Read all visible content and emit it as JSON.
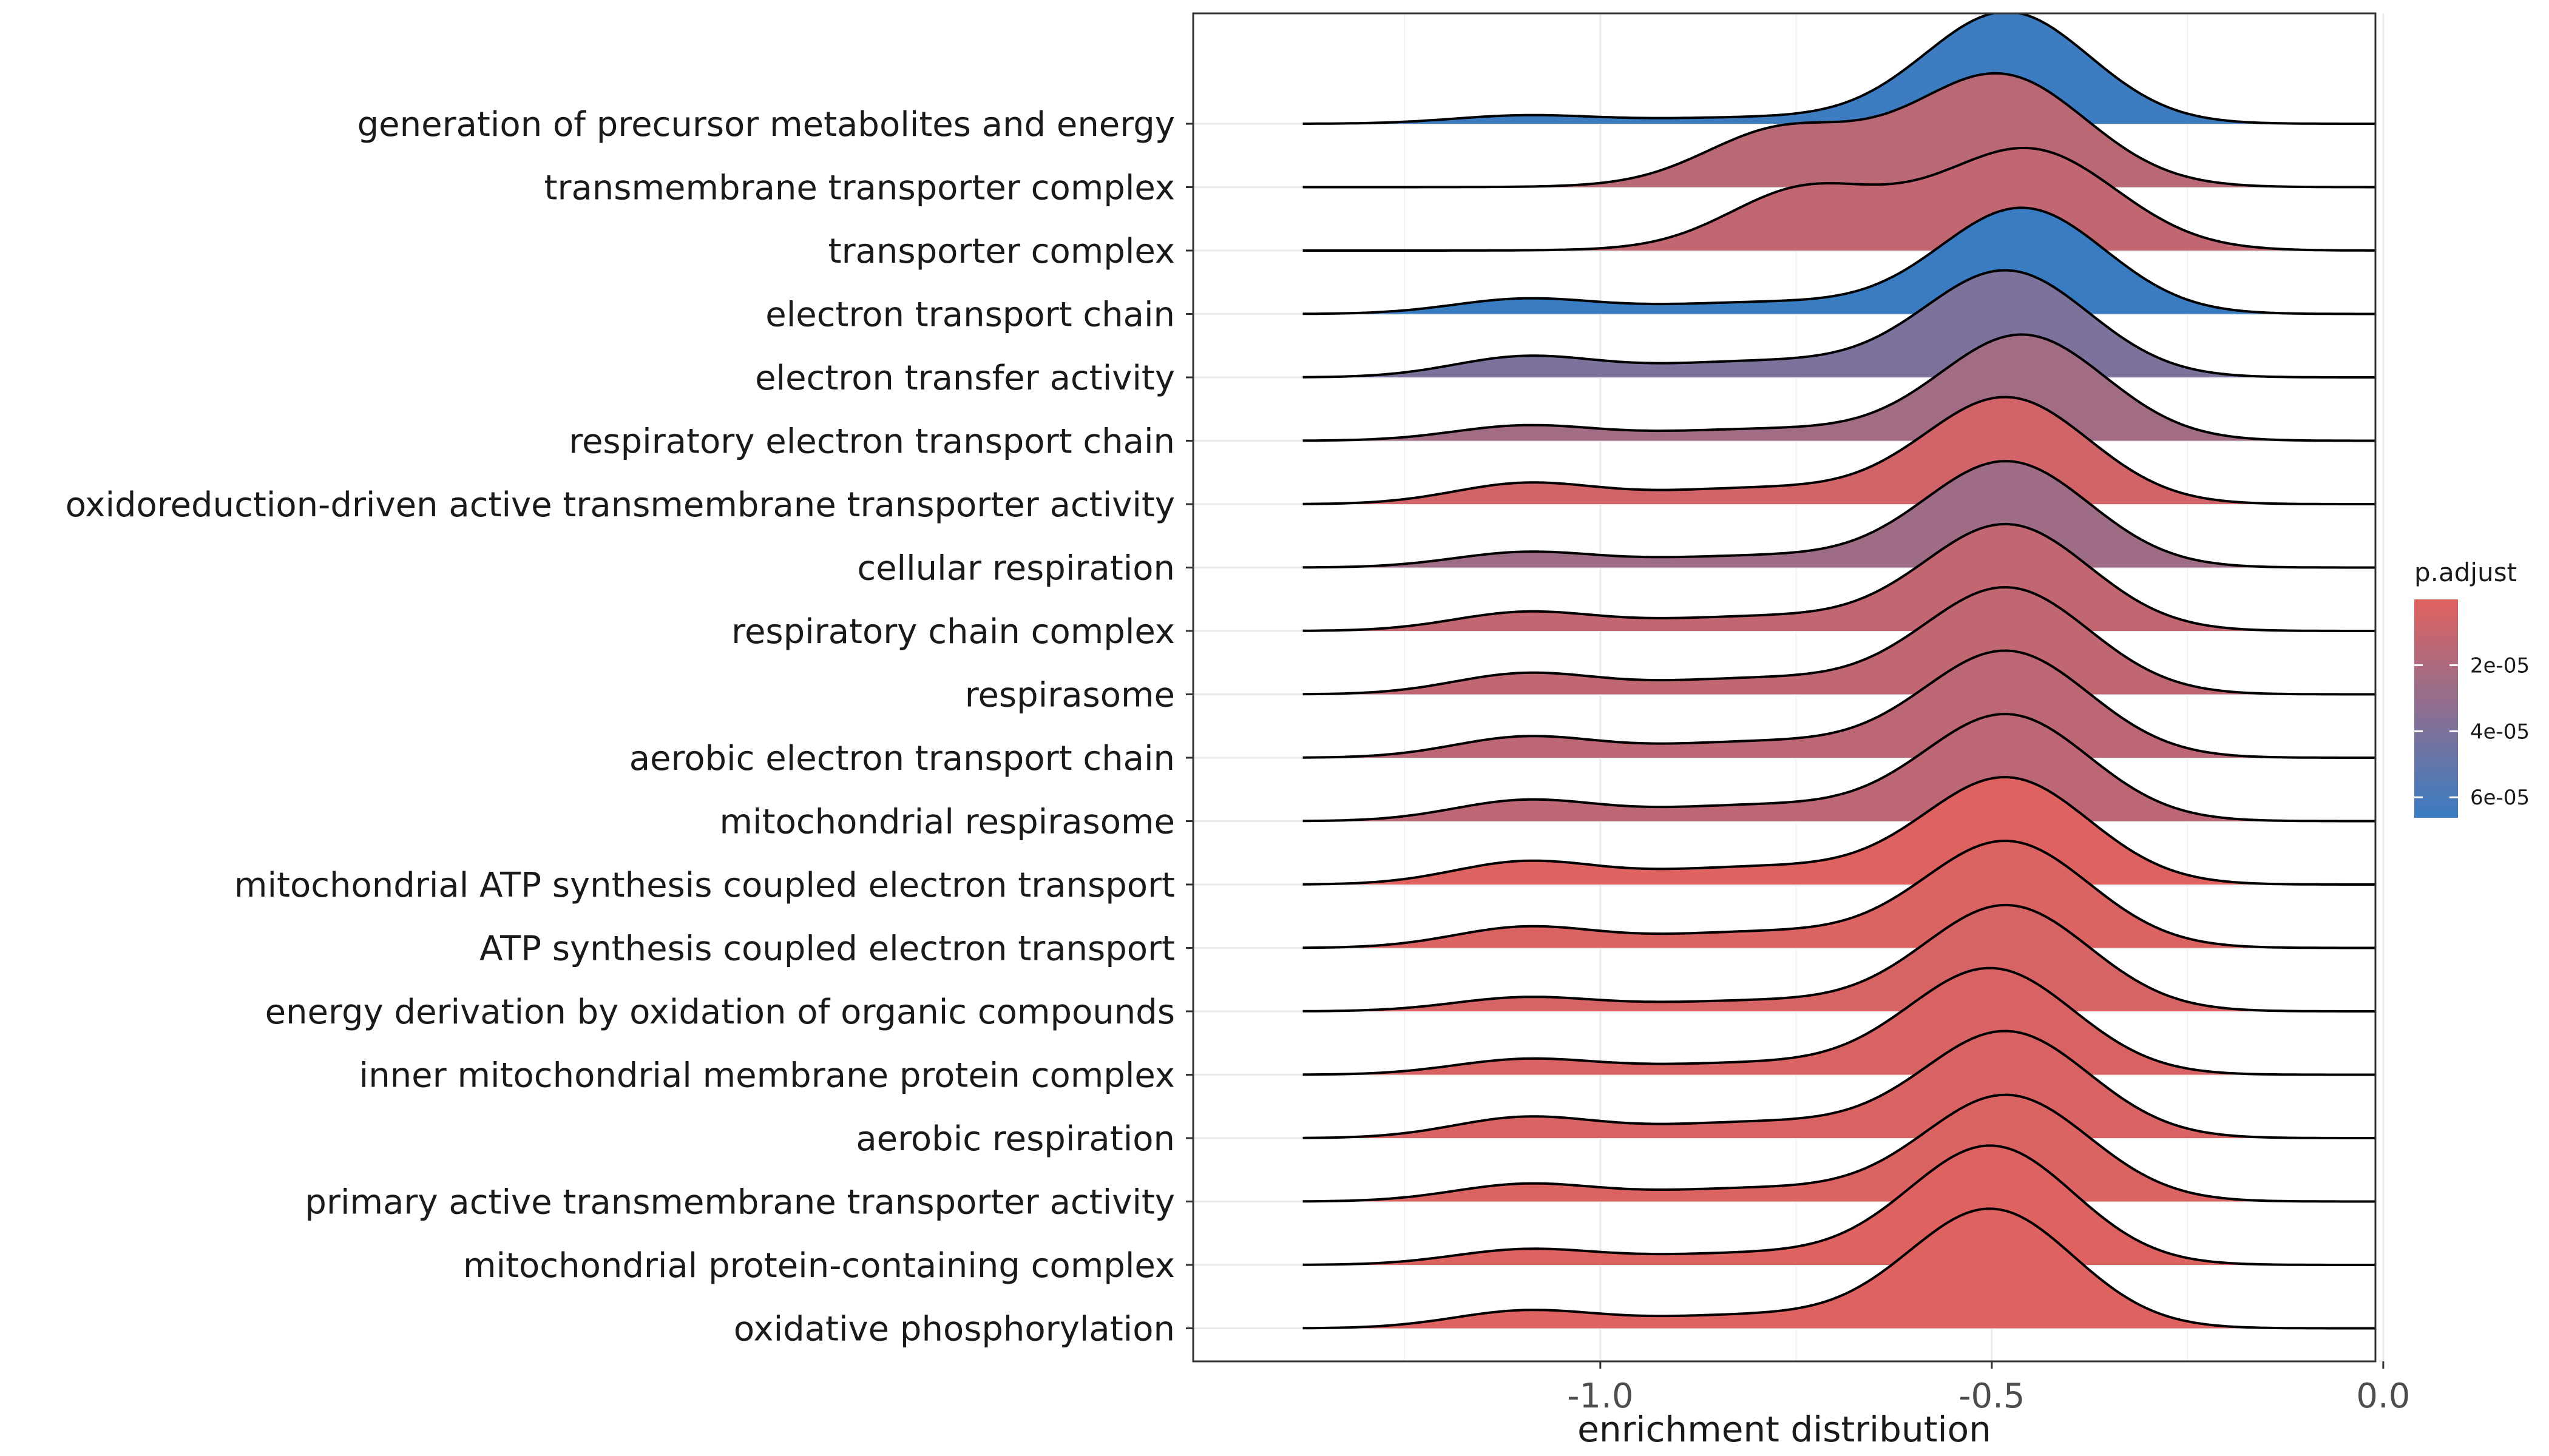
{
  "chart_data": {
    "type": "ridgeline",
    "xlabel": "enrichment distribution",
    "ylabel": "",
    "xlim": [
      -1.52,
      -0.01
    ],
    "x_ticks": [
      -1.0,
      -0.5,
      0.0
    ],
    "x_tick_labels": [
      "-1.0",
      "-0.5",
      "0.0"
    ],
    "grid": true,
    "legend": {
      "title": "p.adjust",
      "position": "right",
      "range": [
        1e-07,
        6.62e-05
      ],
      "ticks": [
        2e-05,
        4e-05,
        6e-05
      ],
      "tick_labels": [
        "2e-05",
        "4e-05",
        "6e-05"
      ],
      "color_low": "#e0625f",
      "color_high": "#3a7cc2"
    },
    "ridges": [
      {
        "term": "generation of precursor metabolites and energy",
        "p_adjust": 6.5e-05,
        "peak_x": -0.48,
        "peak_height": 1.75,
        "x_min": -1.38,
        "x_max": -0.01,
        "shoulder_x": -1.1,
        "shoulder_height": 0.12
      },
      {
        "term": "transmembrane transporter complex",
        "p_adjust": 1.5e-05,
        "peak_x": -0.48,
        "peak_height": 1.45,
        "x_min": -1.38,
        "x_max": -0.01,
        "shoulder_x": -0.78,
        "shoulder_height": 0.6
      },
      {
        "term": "transporter complex",
        "p_adjust": 1.2e-05,
        "peak_x": -0.44,
        "peak_height": 1.25,
        "x_min": -1.38,
        "x_max": -0.01,
        "shoulder_x": -0.75,
        "shoulder_height": 0.65
      },
      {
        "term": "electron transport chain",
        "p_adjust": 6.62e-05,
        "peak_x": -0.46,
        "peak_height": 1.65,
        "x_min": -1.38,
        "x_max": -0.01,
        "shoulder_x": -1.1,
        "shoulder_height": 0.22
      },
      {
        "term": "electron transfer activity",
        "p_adjust": 4e-05,
        "peak_x": -0.48,
        "peak_height": 1.65,
        "x_min": -1.38,
        "x_max": -0.01,
        "shoulder_x": -1.1,
        "shoulder_height": 0.3
      },
      {
        "term": "respiratory electron transport chain",
        "p_adjust": 2.5e-05,
        "peak_x": -0.46,
        "peak_height": 1.65,
        "x_min": -1.38,
        "x_max": -0.01,
        "shoulder_x": -1.1,
        "shoulder_height": 0.22
      },
      {
        "term": "oxidoreduction-driven active transmembrane transporter activity",
        "p_adjust": 6e-06,
        "peak_x": -0.48,
        "peak_height": 1.65,
        "x_min": -1.38,
        "x_max": -0.01,
        "shoulder_x": -1.1,
        "shoulder_height": 0.3
      },
      {
        "term": "cellular respiration",
        "p_adjust": 2.6e-05,
        "peak_x": -0.48,
        "peak_height": 1.65,
        "x_min": -1.38,
        "x_max": -0.01,
        "shoulder_x": -1.1,
        "shoulder_height": 0.22
      },
      {
        "term": "respiratory chain complex",
        "p_adjust": 1.2e-05,
        "peak_x": -0.48,
        "peak_height": 1.65,
        "x_min": -1.38,
        "x_max": -0.01,
        "shoulder_x": -1.1,
        "shoulder_height": 0.27
      },
      {
        "term": "respirasome",
        "p_adjust": 1.3e-05,
        "peak_x": -0.48,
        "peak_height": 1.65,
        "x_min": -1.38,
        "x_max": -0.01,
        "shoulder_x": -1.1,
        "shoulder_height": 0.3
      },
      {
        "term": "aerobic electron transport chain",
        "p_adjust": 1.4e-05,
        "peak_x": -0.48,
        "peak_height": 1.65,
        "x_min": -1.38,
        "x_max": -0.01,
        "shoulder_x": -1.1,
        "shoulder_height": 0.3
      },
      {
        "term": "mitochondrial respirasome",
        "p_adjust": 1.4e-05,
        "peak_x": -0.48,
        "peak_height": 1.65,
        "x_min": -1.38,
        "x_max": -0.01,
        "shoulder_x": -1.1,
        "shoulder_height": 0.3
      },
      {
        "term": "mitochondrial ATP synthesis coupled electron transport",
        "p_adjust": 1e-06,
        "peak_x": -0.48,
        "peak_height": 1.65,
        "x_min": -1.38,
        "x_max": -0.01,
        "shoulder_x": -1.1,
        "shoulder_height": 0.33
      },
      {
        "term": "ATP synthesis coupled electron transport",
        "p_adjust": 2e-06,
        "peak_x": -0.48,
        "peak_height": 1.65,
        "x_min": -1.38,
        "x_max": -0.01,
        "shoulder_x": -1.1,
        "shoulder_height": 0.3
      },
      {
        "term": "energy derivation by oxidation of organic compounds",
        "p_adjust": 4e-06,
        "peak_x": -0.48,
        "peak_height": 1.65,
        "x_min": -1.38,
        "x_max": -0.01,
        "shoulder_x": -1.1,
        "shoulder_height": 0.2
      },
      {
        "term": "inner mitochondrial membrane protein complex",
        "p_adjust": 3e-06,
        "peak_x": -0.5,
        "peak_height": 1.65,
        "x_min": -1.38,
        "x_max": -0.01,
        "shoulder_x": -1.1,
        "shoulder_height": 0.22
      },
      {
        "term": "aerobic respiration",
        "p_adjust": 3e-06,
        "peak_x": -0.48,
        "peak_height": 1.65,
        "x_min": -1.38,
        "x_max": -0.01,
        "shoulder_x": -1.1,
        "shoulder_height": 0.3
      },
      {
        "term": "primary active transmembrane transporter activity",
        "p_adjust": 2e-06,
        "peak_x": -0.48,
        "peak_height": 1.65,
        "x_min": -1.38,
        "x_max": -0.01,
        "shoulder_x": -1.1,
        "shoulder_height": 0.25
      },
      {
        "term": "mitochondrial protein-containing complex",
        "p_adjust": 1e-06,
        "peak_x": -0.5,
        "peak_height": 1.85,
        "x_min": -1.38,
        "x_max": -0.01,
        "shoulder_x": -1.1,
        "shoulder_height": 0.22
      },
      {
        "term": "oxidative phosphorylation",
        "p_adjust": 1e-06,
        "peak_x": -0.5,
        "peak_height": 1.85,
        "x_min": -1.38,
        "x_max": -0.01,
        "shoulder_x": -1.1,
        "shoulder_height": 0.25
      }
    ]
  }
}
